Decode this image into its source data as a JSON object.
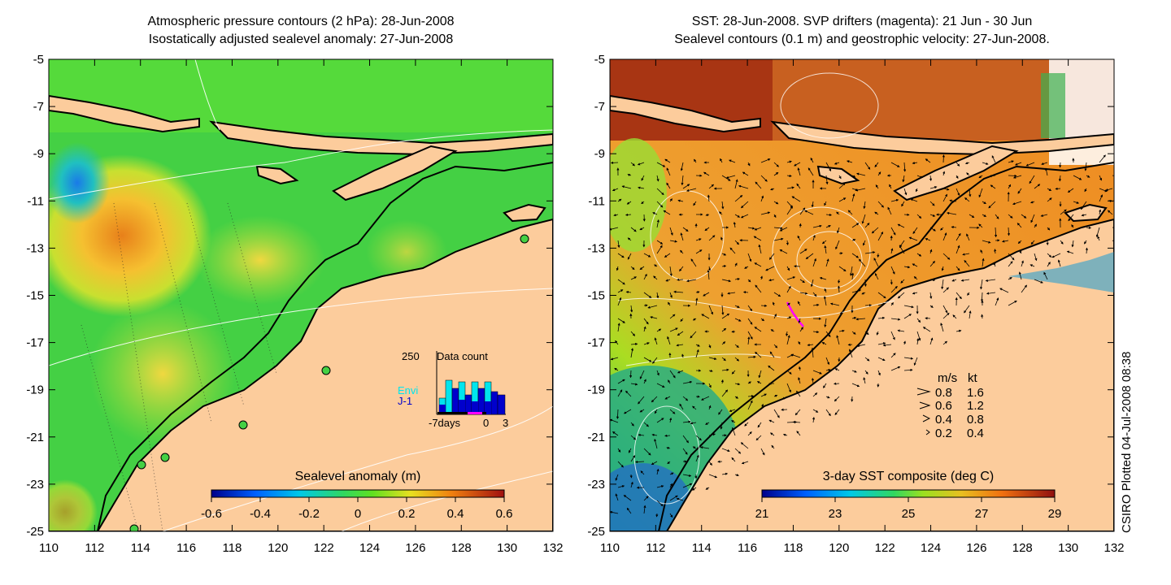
{
  "left_panel": {
    "title_line1": "Atmospheric pressure contours (2 hPa): 28-Jun-2008",
    "title_line2": "Isostatically adjusted sealevel anomaly: 27-Jun-2008",
    "colorbar_label": "Sealevel anomaly (m)",
    "colorbar_ticks": [
      "-0.6",
      "-0.4",
      "-0.2",
      "0",
      "0.2",
      "0.4",
      "0.6"
    ],
    "inset": {
      "max_label": "250",
      "title": "Data count",
      "series": [
        {
          "name": "Envi",
          "color": "#00e5ee"
        },
        {
          "name": "J-1",
          "color": "#0000cc"
        }
      ],
      "x_labels": [
        "-7days",
        "0",
        "3"
      ]
    }
  },
  "right_panel": {
    "title_line1": "SST: 28-Jun-2008. SVP drifters (magenta): 21 Jun - 30 Jun",
    "title_line2": "Sealevel contours (0.1 m) and geostrophic velocity: 27-Jun-2008.",
    "colorbar_label": "3-day SST composite (deg C)",
    "colorbar_ticks": [
      "21",
      "23",
      "25",
      "27",
      "29"
    ],
    "velocity_legend": {
      "header_ms": "m/s",
      "header_kt": "kt",
      "rows": [
        {
          "ms": "0.8",
          "kt": "1.6"
        },
        {
          "ms": "0.6",
          "kt": "1.2"
        },
        {
          "ms": "0.4",
          "kt": "0.8"
        },
        {
          "ms": "0.2",
          "kt": "0.4"
        }
      ]
    }
  },
  "axes": {
    "lat_labels": [
      "-5",
      "-7",
      "-9",
      "-11",
      "-13",
      "-15",
      "-17",
      "-19",
      "-21",
      "-23",
      "-25"
    ],
    "lon_labels": [
      "110",
      "112",
      "114",
      "116",
      "118",
      "120",
      "122",
      "124",
      "126",
      "128",
      "130",
      "132"
    ]
  },
  "credit": "CSIRO Plotted 04-Jul-2008 08:38",
  "colors": {
    "land": "#fccc9c",
    "ocean_sla": "#44d044",
    "ocean_sst_warm": "#ee8822",
    "ocean_sst_hot": "#aa2200",
    "drifter": "#ff00ff"
  }
}
